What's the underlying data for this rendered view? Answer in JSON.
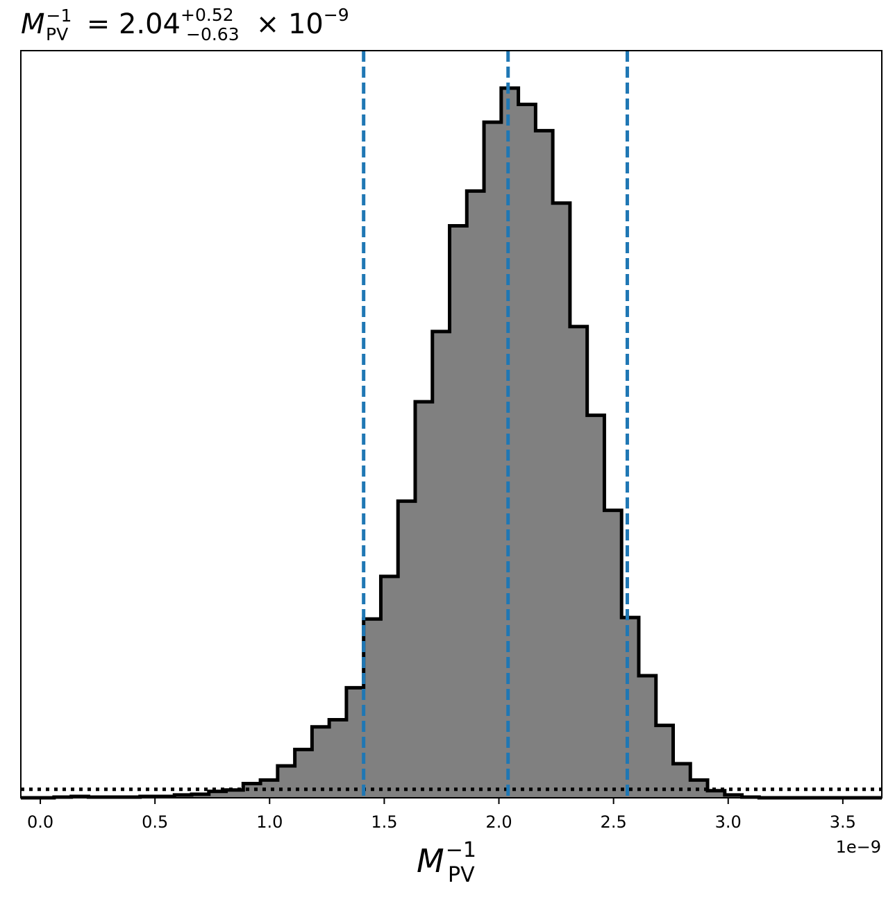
{
  "chart_data": {
    "type": "histogram",
    "title": {
      "symbol": "M",
      "sub": "PV",
      "sup": "−1",
      "equals": " = 2.04",
      "plus": "+0.52",
      "minus": "−0.63",
      "times": " × 10",
      "exp": "−9"
    },
    "xlabel": {
      "symbol": "M",
      "sub": "PV",
      "sup": "−1"
    },
    "offset_text": "1e−9",
    "xlim": [
      -0.085,
      3.67
    ],
    "ylim": [
      0,
      1.0
    ],
    "x_ticks": [
      0.0,
      0.5,
      1.0,
      1.5,
      2.0,
      2.5,
      3.0,
      3.5
    ],
    "x_tick_labels": [
      "0.0",
      "0.5",
      "1.0",
      "1.5",
      "2.0",
      "2.5",
      "3.0",
      "3.5"
    ],
    "bin_edges": [
      0.06,
      0.135,
      0.21,
      0.285,
      0.36,
      0.435,
      0.51,
      0.585,
      0.66,
      0.735,
      0.81,
      0.885,
      0.96,
      1.035,
      1.11,
      1.185,
      1.26,
      1.335,
      1.41,
      1.485,
      1.56,
      1.635,
      1.71,
      1.785,
      1.86,
      1.935,
      2.01,
      2.085,
      2.16,
      2.235,
      2.31,
      2.385,
      2.46,
      2.535,
      2.61,
      2.685,
      2.76,
      2.835,
      2.91,
      2.985,
      3.06,
      3.135
    ],
    "counts": [
      0.001,
      0.002,
      0.001,
      0.001,
      0.001,
      0.002,
      0.002,
      0.004,
      0.005,
      0.009,
      0.011,
      0.02,
      0.025,
      0.045,
      0.068,
      0.1,
      0.11,
      0.155,
      0.252,
      0.312,
      0.418,
      0.558,
      0.657,
      0.806,
      0.855,
      0.952,
      1.0,
      0.977,
      0.94,
      0.838,
      0.664,
      0.539,
      0.405,
      0.254,
      0.172,
      0.102,
      0.048,
      0.025,
      0.01,
      0.004,
      0.001
    ],
    "quantile_lines": [
      1.41,
      2.04,
      2.56
    ],
    "reference_level": 0.012,
    "colors": {
      "fill": "#808080",
      "edge": "#000000",
      "quantile": "#1f77b4",
      "reference": "#000000"
    },
    "grid": false,
    "legend": "none"
  }
}
